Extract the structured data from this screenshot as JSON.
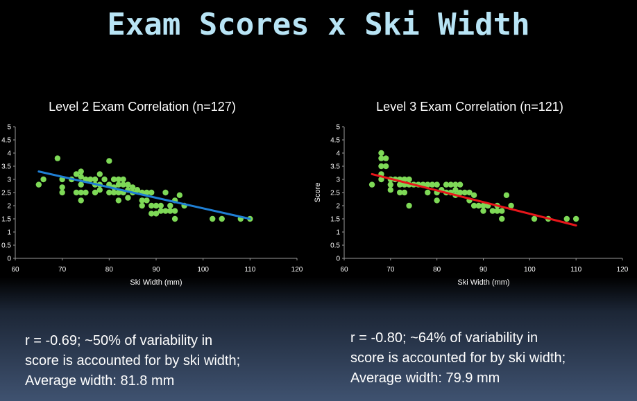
{
  "slide": {
    "title": "Exam Scores x Ski Width"
  },
  "chart_data": [
    {
      "type": "scatter",
      "title": "Level 2 Exam Correlation (n=127)",
      "xlabel": "Ski Width (mm)",
      "ylabel": "",
      "xlim": [
        60,
        120
      ],
      "ylim": [
        0,
        5
      ],
      "x_ticks": [
        "60",
        "70",
        "80",
        "90",
        "100",
        "110",
        "120"
      ],
      "y_ticks": [
        "0",
        "0.5",
        "1",
        "1.5",
        "2",
        "2.5",
        "3",
        "3.5",
        "4",
        "4.5",
        "5"
      ],
      "point_color": "#7ed957",
      "trendline": {
        "color": "#1f7fd4",
        "x": [
          65,
          110
        ],
        "y": [
          3.3,
          1.5
        ]
      },
      "points": [
        [
          65,
          2.8
        ],
        [
          66,
          3.0
        ],
        [
          69,
          3.8
        ],
        [
          70,
          3.0
        ],
        [
          70,
          2.7
        ],
        [
          70,
          2.5
        ],
        [
          72,
          3.0
        ],
        [
          73,
          3.2
        ],
        [
          73,
          2.5
        ],
        [
          74,
          3.3
        ],
        [
          74,
          3.1
        ],
        [
          74,
          2.8
        ],
        [
          74,
          2.5
        ],
        [
          74,
          2.2
        ],
        [
          75,
          3.0
        ],
        [
          75,
          2.5
        ],
        [
          76,
          3.0
        ],
        [
          77,
          3.0
        ],
        [
          77,
          2.8
        ],
        [
          77,
          2.5
        ],
        [
          78,
          3.2
        ],
        [
          78,
          2.8
        ],
        [
          78,
          2.6
        ],
        [
          79,
          3.0
        ],
        [
          80,
          3.7
        ],
        [
          80,
          2.8
        ],
        [
          80,
          2.5
        ],
        [
          81,
          3.0
        ],
        [
          81,
          2.7
        ],
        [
          81,
          2.5
        ],
        [
          82,
          3.0
        ],
        [
          82,
          2.8
        ],
        [
          82,
          2.5
        ],
        [
          82,
          2.2
        ],
        [
          83,
          3.0
        ],
        [
          83,
          2.8
        ],
        [
          83,
          2.5
        ],
        [
          84,
          2.8
        ],
        [
          84,
          2.6
        ],
        [
          84,
          2.3
        ],
        [
          85,
          2.7
        ],
        [
          85,
          2.5
        ],
        [
          86,
          2.6
        ],
        [
          87,
          2.5
        ],
        [
          87,
          2.2
        ],
        [
          87,
          2.0
        ],
        [
          88,
          2.5
        ],
        [
          88,
          2.2
        ],
        [
          89,
          2.5
        ],
        [
          89,
          2.0
        ],
        [
          89,
          1.7
        ],
        [
          90,
          2.0
        ],
        [
          90,
          1.7
        ],
        [
          91,
          2.0
        ],
        [
          91,
          1.8
        ],
        [
          92,
          2.5
        ],
        [
          92,
          1.8
        ],
        [
          93,
          2.0
        ],
        [
          93,
          1.8
        ],
        [
          94,
          2.2
        ],
        [
          94,
          1.8
        ],
        [
          94,
          1.5
        ],
        [
          95,
          2.4
        ],
        [
          96,
          2.0
        ],
        [
          102,
          1.5
        ],
        [
          104,
          1.5
        ],
        [
          108,
          1.5
        ],
        [
          110,
          1.5
        ]
      ]
    },
    {
      "type": "scatter",
      "title": "Level 3 Exam Correlation (n=121)",
      "xlabel": "Ski Width (mm)",
      "ylabel": "Score",
      "xlim": [
        60,
        120
      ],
      "ylim": [
        0,
        5
      ],
      "x_ticks": [
        "60",
        "70",
        "80",
        "90",
        "100",
        "110",
        "120"
      ],
      "y_ticks": [
        "0",
        "0.5",
        "1",
        "1.5",
        "2",
        "2.5",
        "3",
        "3.5",
        "4",
        "4.5",
        "5"
      ],
      "point_color": "#7ed957",
      "trendline": {
        "color": "#e8161b",
        "x": [
          66,
          110
        ],
        "y": [
          3.2,
          1.25
        ]
      },
      "points": [
        [
          66,
          2.8
        ],
        [
          68,
          4.0
        ],
        [
          68,
          3.8
        ],
        [
          68,
          3.5
        ],
        [
          68,
          3.2
        ],
        [
          68,
          3.0
        ],
        [
          69,
          3.8
        ],
        [
          69,
          3.5
        ],
        [
          70,
          3.0
        ],
        [
          70,
          2.8
        ],
        [
          70,
          2.6
        ],
        [
          71,
          3.0
        ],
        [
          72,
          3.0
        ],
        [
          72,
          2.8
        ],
        [
          72,
          2.5
        ],
        [
          73,
          3.0
        ],
        [
          73,
          2.8
        ],
        [
          73,
          2.5
        ],
        [
          74,
          3.0
        ],
        [
          74,
          2.8
        ],
        [
          74,
          2.0
        ],
        [
          75,
          2.8
        ],
        [
          76,
          2.8
        ],
        [
          77,
          2.8
        ],
        [
          78,
          2.8
        ],
        [
          78,
          2.5
        ],
        [
          79,
          2.8
        ],
        [
          80,
          2.8
        ],
        [
          80,
          2.5
        ],
        [
          80,
          2.2
        ],
        [
          81,
          2.6
        ],
        [
          82,
          2.8
        ],
        [
          82,
          2.5
        ],
        [
          83,
          2.8
        ],
        [
          83,
          2.5
        ],
        [
          84,
          2.8
        ],
        [
          84,
          2.6
        ],
        [
          84,
          2.4
        ],
        [
          85,
          2.8
        ],
        [
          85,
          2.5
        ],
        [
          86,
          2.5
        ],
        [
          87,
          2.5
        ],
        [
          87,
          2.2
        ],
        [
          88,
          2.4
        ],
        [
          88,
          2.0
        ],
        [
          89,
          2.0
        ],
        [
          90,
          2.0
        ],
        [
          90,
          1.8
        ],
        [
          91,
          2.0
        ],
        [
          92,
          1.8
        ],
        [
          93,
          2.0
        ],
        [
          93,
          1.8
        ],
        [
          94,
          1.8
        ],
        [
          94,
          1.5
        ],
        [
          95,
          2.4
        ],
        [
          96,
          2.0
        ],
        [
          101,
          1.5
        ],
        [
          104,
          1.5
        ],
        [
          108,
          1.5
        ],
        [
          110,
          1.5
        ]
      ]
    }
  ],
  "captions": {
    "left": [
      "r = -0.69; ~50% of variability in",
      "score is accounted for by ski width;",
      "Average width: 81.8 mm"
    ],
    "right": [
      "r = -0.80; ~64% of variability in",
      "score is accounted for by ski width;",
      "Average width: 79.9 mm"
    ]
  }
}
